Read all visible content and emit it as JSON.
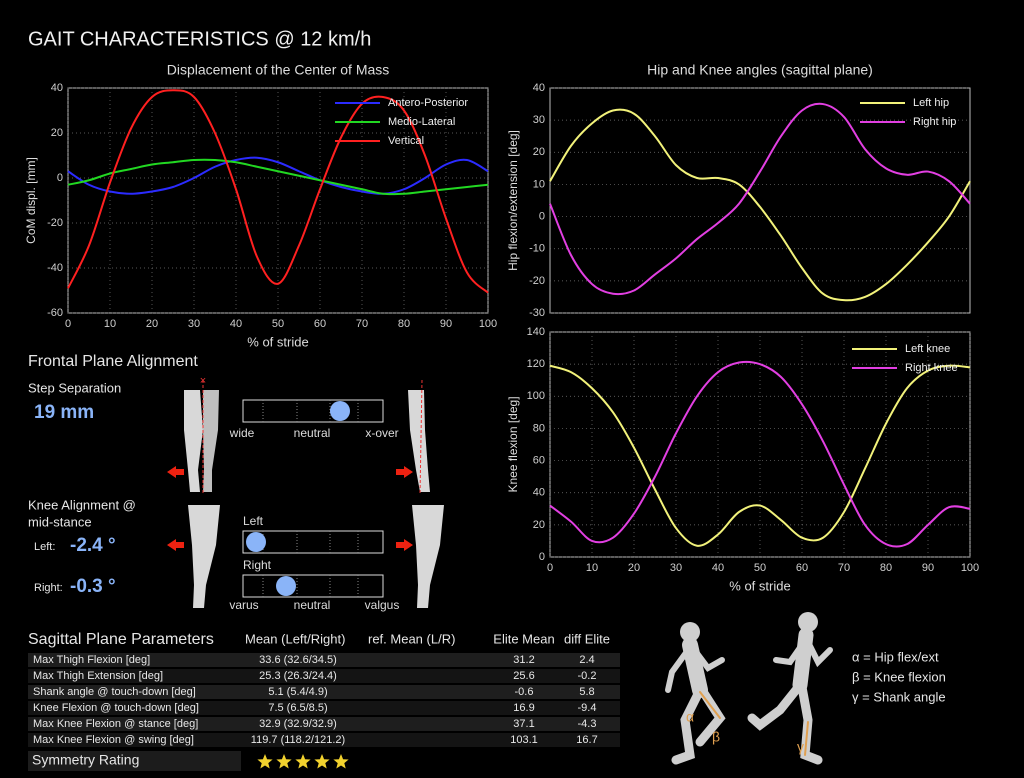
{
  "title": "GAIT CHARACTERISTICS @ 12 km/h",
  "chart_data": [
    {
      "type": "line",
      "title": "Displacement of the Center of Mass",
      "xlabel": "% of stride",
      "ylabel": "CoM displ. [mm]",
      "xlim": [
        0,
        100
      ],
      "xticks": [
        0,
        10,
        20,
        30,
        40,
        50,
        60,
        70,
        80,
        90,
        100
      ],
      "ylim": [
        -60,
        40
      ],
      "yticks": [
        -60,
        -40,
        -20,
        0,
        20,
        40
      ],
      "grid": true,
      "legend": "upper right",
      "x": [
        0,
        5,
        10,
        15,
        20,
        25,
        30,
        35,
        40,
        45,
        50,
        55,
        60,
        65,
        70,
        75,
        80,
        85,
        90,
        95,
        100
      ],
      "series": [
        {
          "name": "Antero-Posterior",
          "color": "#2b2bff",
          "values": [
            3,
            -3,
            -6,
            -7,
            -6,
            -4,
            0,
            5,
            8,
            9,
            7,
            3,
            -1,
            -4,
            -6,
            -7,
            -5,
            0,
            6,
            8,
            3
          ]
        },
        {
          "name": "Medio-Lateral",
          "color": "#22d822",
          "values": [
            -3,
            -1,
            2,
            4,
            6,
            7,
            8,
            8,
            7,
            5,
            3,
            1,
            -1,
            -3,
            -5,
            -7,
            -7,
            -6,
            -5,
            -4,
            -3
          ]
        },
        {
          "name": "Vertical",
          "color": "#ff2020",
          "values": [
            -49,
            -30,
            -2,
            22,
            36,
            39,
            36,
            20,
            -5,
            -35,
            -47,
            -30,
            -5,
            18,
            33,
            36,
            30,
            10,
            -18,
            -42,
            -51
          ]
        }
      ]
    },
    {
      "type": "line",
      "title": "Hip and Knee angles (sagittal plane)",
      "ylabel": "Hip flexion/extension [deg]",
      "xlim": [
        0,
        100
      ],
      "ylim": [
        -30,
        40
      ],
      "yticks": [
        -30,
        -20,
        -10,
        0,
        10,
        20,
        30,
        40
      ],
      "grid": true,
      "legend": "upper right",
      "x": [
        0,
        5,
        10,
        15,
        20,
        25,
        30,
        35,
        40,
        45,
        50,
        55,
        60,
        65,
        70,
        75,
        80,
        85,
        90,
        95,
        100
      ],
      "series": [
        {
          "name": "Left hip",
          "color": "#f2f27a",
          "values": [
            11,
            22,
            29,
            33,
            32,
            25,
            16,
            12,
            12,
            10,
            3,
            -6,
            -16,
            -24,
            -26,
            -25,
            -21,
            -15,
            -8,
            0,
            11
          ]
        },
        {
          "name": "Right hip",
          "color": "#e23fe2",
          "values": [
            4,
            -12,
            -21,
            -24,
            -23,
            -18,
            -13,
            -7,
            -2,
            4,
            14,
            25,
            33,
            35,
            31,
            21,
            15,
            13,
            14,
            11,
            4
          ]
        }
      ]
    },
    {
      "type": "line",
      "xlabel": "% of stride",
      "ylabel": "Knee flexion [deg]",
      "xlim": [
        0,
        100
      ],
      "xticks": [
        0,
        10,
        20,
        30,
        40,
        50,
        60,
        70,
        80,
        90,
        100
      ],
      "ylim": [
        0,
        140
      ],
      "yticks": [
        0,
        20,
        40,
        60,
        80,
        100,
        120,
        140
      ],
      "grid": true,
      "legend": "upper right",
      "x": [
        0,
        5,
        10,
        15,
        20,
        25,
        30,
        35,
        40,
        45,
        50,
        55,
        60,
        65,
        70,
        75,
        80,
        85,
        90,
        95,
        100
      ],
      "series": [
        {
          "name": "Left knee",
          "color": "#f2f27a",
          "values": [
            119,
            115,
            105,
            90,
            68,
            42,
            18,
            7,
            14,
            28,
            32,
            23,
            12,
            12,
            28,
            55,
            83,
            105,
            116,
            119,
            118
          ]
        },
        {
          "name": "Right knee",
          "color": "#e23fe2",
          "values": [
            32,
            22,
            10,
            12,
            27,
            50,
            77,
            100,
            115,
            121,
            120,
            112,
            95,
            72,
            45,
            20,
            8,
            8,
            20,
            31,
            30
          ]
        }
      ]
    }
  ],
  "frontal": {
    "title": "Frontal Plane Alignment",
    "step_label": "Step Separation",
    "step_value": "19 mm",
    "step_scale": [
      "wide",
      "neutral",
      "x-over"
    ],
    "knee_title": [
      "Knee Alignment @",
      "mid-stance"
    ],
    "left_label": "Left:",
    "left_value": "-2.4 °",
    "right_label": "Right:",
    "right_value": "-0.3 °",
    "bar_left": "Left",
    "bar_right": "Right",
    "knee_scale": [
      "varus",
      "neutral",
      "valgus"
    ]
  },
  "sagittal": {
    "header": [
      "Sagittal Plane Parameters",
      "Mean (Left/Right)",
      "ref. Mean (L/R)",
      "Elite Mean",
      "diff Elite"
    ],
    "rows": [
      {
        "label": "Max Thigh Flexion [deg]",
        "mean": "33.6 (32.6/34.5)",
        "elite": 31.2,
        "diff": 2.4
      },
      {
        "label": "Max Thigh Extension [deg]",
        "mean": "25.3 (26.3/24.4)",
        "elite": 25.6,
        "diff": -0.2
      },
      {
        "label": "Shank angle @ touch-down [deg]",
        "mean": "5.1 (5.4/4.9)",
        "elite": -0.6,
        "diff": 5.8
      },
      {
        "label": "Knee Flexion @ touch-down [deg]",
        "mean": "7.5 (6.5/8.5)",
        "elite": 16.9,
        "diff": -9.4
      },
      {
        "label": "Max Knee Flexion @ stance [deg]",
        "mean": "32.9 (32.9/32.9)",
        "elite": 37.1,
        "diff": -4.3
      },
      {
        "label": "Max Knee Flexion @ swing [deg]",
        "mean": "119.7 (118.2/121.2)",
        "elite": 103.1,
        "diff": 16.7
      }
    ],
    "symmetry_label": "Symmetry Rating",
    "symmetry_rating": 5
  },
  "angles": {
    "legend": [
      "α = Hip flex/ext",
      "β = Knee flexion",
      "γ = Shank angle"
    ],
    "figure_labels": [
      "α",
      "β",
      "γ"
    ]
  }
}
